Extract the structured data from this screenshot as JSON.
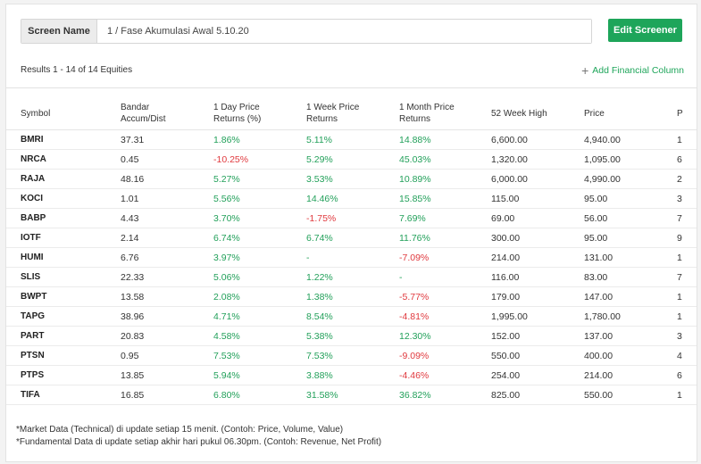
{
  "screener": {
    "label": "Screen Name",
    "name": "1 / Fase Akumulasi Awal 5.10.20",
    "edit_button": "Edit Screener"
  },
  "results_text": "Results 1 - 14 of 14 Equities",
  "add_column": "Add Financial Column",
  "columns": [
    "Symbol",
    "Bandar Accum/Dist",
    "1 Day Price Returns (%)",
    "1 Week Price Returns",
    "1 Month Price Returns",
    "52 Week High",
    "Price",
    "P"
  ],
  "rows": [
    {
      "symbol": "BMRI",
      "bandar": "37.31",
      "d1": "1.86%",
      "w1": "5.11%",
      "m1": "14.88%",
      "high52": "6,600.00",
      "price": "4,940.00",
      "p": "1"
    },
    {
      "symbol": "NRCA",
      "bandar": "0.45",
      "d1": "-10.25%",
      "w1": "5.29%",
      "m1": "45.03%",
      "high52": "1,320.00",
      "price": "1,095.00",
      "p": "6"
    },
    {
      "symbol": "RAJA",
      "bandar": "48.16",
      "d1": "5.27%",
      "w1": "3.53%",
      "m1": "10.89%",
      "high52": "6,000.00",
      "price": "4,990.00",
      "p": "2"
    },
    {
      "symbol": "KOCI",
      "bandar": "1.01",
      "d1": "5.56%",
      "w1": "14.46%",
      "m1": "15.85%",
      "high52": "115.00",
      "price": "95.00",
      "p": "3"
    },
    {
      "symbol": "BABP",
      "bandar": "4.43",
      "d1": "3.70%",
      "w1": "-1.75%",
      "m1": "7.69%",
      "high52": "69.00",
      "price": "56.00",
      "p": "7"
    },
    {
      "symbol": "IOTF",
      "bandar": "2.14",
      "d1": "6.74%",
      "w1": "6.74%",
      "m1": "11.76%",
      "high52": "300.00",
      "price": "95.00",
      "p": "9"
    },
    {
      "symbol": "HUMI",
      "bandar": "6.76",
      "d1": "3.97%",
      "w1": "-",
      "m1": "-7.09%",
      "high52": "214.00",
      "price": "131.00",
      "p": "1"
    },
    {
      "symbol": "SLIS",
      "bandar": "22.33",
      "d1": "5.06%",
      "w1": "1.22%",
      "m1": "-",
      "high52": "116.00",
      "price": "83.00",
      "p": "7"
    },
    {
      "symbol": "BWPT",
      "bandar": "13.58",
      "d1": "2.08%",
      "w1": "1.38%",
      "m1": "-5.77%",
      "high52": "179.00",
      "price": "147.00",
      "p": "1"
    },
    {
      "symbol": "TAPG",
      "bandar": "38.96",
      "d1": "4.71%",
      "w1": "8.54%",
      "m1": "-4.81%",
      "high52": "1,995.00",
      "price": "1,780.00",
      "p": "1"
    },
    {
      "symbol": "PART",
      "bandar": "20.83",
      "d1": "4.58%",
      "w1": "5.38%",
      "m1": "12.30%",
      "high52": "152.00",
      "price": "137.00",
      "p": "3"
    },
    {
      "symbol": "PTSN",
      "bandar": "0.95",
      "d1": "7.53%",
      "w1": "7.53%",
      "m1": "-9.09%",
      "high52": "550.00",
      "price": "400.00",
      "p": "4"
    },
    {
      "symbol": "PTPS",
      "bandar": "13.85",
      "d1": "5.94%",
      "w1": "3.88%",
      "m1": "-4.46%",
      "high52": "254.00",
      "price": "214.00",
      "p": "6"
    },
    {
      "symbol": "TIFA",
      "bandar": "16.85",
      "d1": "6.80%",
      "w1": "31.58%",
      "m1": "36.82%",
      "high52": "825.00",
      "price": "550.00",
      "p": "1"
    }
  ],
  "footer": [
    "*Market Data (Technical) di update setiap 15 menit. (Contoh: Price, Volume, Value)",
    "*Fundamental Data di update setiap akhir hari pukul 06.30pm. (Contoh: Revenue, Net Profit)"
  ],
  "colors": {
    "accent": "#1ea55a",
    "positive": "#22a05a",
    "negative": "#e0393e"
  }
}
